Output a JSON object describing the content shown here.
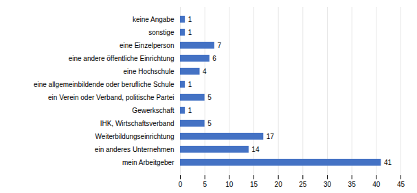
{
  "chart_data": {
    "type": "bar",
    "orientation": "horizontal",
    "categories": [
      "mein Arbeitgeber",
      "ein anderes Unternehmen",
      "Weiterbildungseinrichtung",
      "IHK, Wirtschaftsverband",
      "Gewerkschaft",
      "ein Verein oder Verband, politische Partei",
      "eine allgemeinbildende oder berufliche Schule",
      "eine Hochschule",
      "eine andere öffentliche Einrichtung",
      "eine Einzelperson",
      "sonstige",
      "keine Angabe"
    ],
    "values": [
      41,
      14,
      17,
      5,
      1,
      5,
      1,
      4,
      6,
      7,
      1,
      1
    ],
    "color": "#4472C4",
    "xlim": [
      0,
      45
    ],
    "xticks": [
      0,
      5,
      10,
      15,
      20,
      25,
      30,
      35,
      40,
      45
    ],
    "grid": true,
    "data_labels": true
  }
}
